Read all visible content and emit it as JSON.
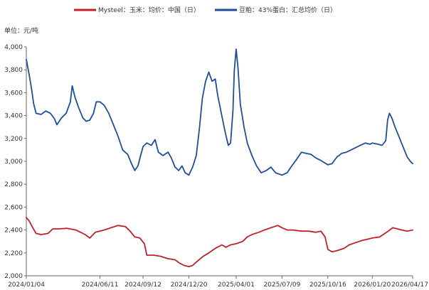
{
  "chart_data": {
    "type": "line",
    "unit_label": "单位：元/吨",
    "ylim": [
      2000,
      4000
    ],
    "y_ticks": [
      "2,000",
      "2,200",
      "2,400",
      "2,600",
      "2,800",
      "3,000",
      "3,200",
      "3,400",
      "3,600",
      "3,800",
      "4,000"
    ],
    "y_tick_values": [
      2000,
      2200,
      2400,
      2600,
      2800,
      3000,
      3200,
      3400,
      3600,
      3800,
      4000
    ],
    "x_ticks": [
      "2024/01/04",
      "2024/06/11",
      "2024/09/12",
      "2024/12/20",
      "2025/04/01",
      "2025/07/09",
      "2025/10/16",
      "2026/01/20",
      "2026/04/17"
    ],
    "x_tick_dates": [
      "2024-01-04",
      "2024-06-11",
      "2024-09-12",
      "2024-12-20",
      "2025-04-01",
      "2025-07-09",
      "2025-10-16",
      "2026-01-20",
      "2026-04-17"
    ],
    "x_range": [
      "2024-01-04",
      "2026-04-17"
    ],
    "grid": false,
    "legend_position": "top",
    "series": [
      {
        "name": "Mysteel：玉米：均价：中国（日）",
        "color": "#c0202a",
        "points": [
          [
            "2024-01-04",
            2510
          ],
          [
            "2024-01-10",
            2480
          ],
          [
            "2024-01-18",
            2420
          ],
          [
            "2024-01-25",
            2370
          ],
          [
            "2024-02-05",
            2360
          ],
          [
            "2024-02-20",
            2370
          ],
          [
            "2024-03-01",
            2410
          ],
          [
            "2024-03-15",
            2410
          ],
          [
            "2024-04-01",
            2415
          ],
          [
            "2024-04-20",
            2400
          ],
          [
            "2024-05-10",
            2360
          ],
          [
            "2024-05-20",
            2330
          ],
          [
            "2024-06-01",
            2380
          ],
          [
            "2024-06-20",
            2400
          ],
          [
            "2024-07-05",
            2420
          ],
          [
            "2024-07-20",
            2440
          ],
          [
            "2024-08-05",
            2430
          ],
          [
            "2024-08-15",
            2390
          ],
          [
            "2024-08-25",
            2340
          ],
          [
            "2024-09-05",
            2330
          ],
          [
            "2024-09-15",
            2280
          ],
          [
            "2024-09-20",
            2180
          ],
          [
            "2024-10-05",
            2180
          ],
          [
            "2024-10-20",
            2170
          ],
          [
            "2024-11-05",
            2150
          ],
          [
            "2024-11-20",
            2140
          ],
          [
            "2024-11-30",
            2110
          ],
          [
            "2024-12-10",
            2090
          ],
          [
            "2024-12-20",
            2080
          ],
          [
            "2024-12-28",
            2090
          ],
          [
            "2025-01-08",
            2130
          ],
          [
            "2025-01-20",
            2170
          ],
          [
            "2025-02-01",
            2200
          ],
          [
            "2025-02-15",
            2240
          ],
          [
            "2025-03-01",
            2270
          ],
          [
            "2025-03-10",
            2250
          ],
          [
            "2025-03-20",
            2270
          ],
          [
            "2025-04-01",
            2280
          ],
          [
            "2025-04-15",
            2300
          ],
          [
            "2025-04-25",
            2340
          ],
          [
            "2025-05-05",
            2360
          ],
          [
            "2025-05-20",
            2380
          ],
          [
            "2025-06-01",
            2400
          ],
          [
            "2025-06-15",
            2420
          ],
          [
            "2025-06-30",
            2440
          ],
          [
            "2025-07-09",
            2420
          ],
          [
            "2025-07-20",
            2400
          ],
          [
            "2025-08-01",
            2400
          ],
          [
            "2025-08-20",
            2390
          ],
          [
            "2025-09-05",
            2390
          ],
          [
            "2025-09-20",
            2380
          ],
          [
            "2025-10-01",
            2390
          ],
          [
            "2025-10-10",
            2340
          ],
          [
            "2025-10-16",
            2230
          ],
          [
            "2025-10-25",
            2210
          ],
          [
            "2025-11-05",
            2220
          ],
          [
            "2025-11-20",
            2240
          ],
          [
            "2025-12-01",
            2270
          ],
          [
            "2025-12-15",
            2290
          ],
          [
            "2025-12-30",
            2310
          ],
          [
            "2026-01-10",
            2320
          ],
          [
            "2026-01-20",
            2330
          ],
          [
            "2026-02-05",
            2340
          ],
          [
            "2026-02-20",
            2380
          ],
          [
            "2026-03-05",
            2420
          ],
          [
            "2026-03-15",
            2410
          ],
          [
            "2026-03-25",
            2400
          ],
          [
            "2026-04-05",
            2390
          ],
          [
            "2026-04-17",
            2400
          ]
        ]
      },
      {
        "name": "豆粕：43%蛋白：汇总均价（日）",
        "color": "#1f4e99",
        "points": [
          [
            "2024-01-04",
            3890
          ],
          [
            "2024-01-10",
            3760
          ],
          [
            "2024-01-15",
            3640
          ],
          [
            "2024-01-20",
            3500
          ],
          [
            "2024-01-25",
            3420
          ],
          [
            "2024-02-05",
            3410
          ],
          [
            "2024-02-15",
            3440
          ],
          [
            "2024-02-25",
            3420
          ],
          [
            "2024-03-05",
            3370
          ],
          [
            "2024-03-10",
            3320
          ],
          [
            "2024-03-20",
            3380
          ],
          [
            "2024-03-30",
            3420
          ],
          [
            "2024-04-08",
            3520
          ],
          [
            "2024-04-12",
            3660
          ],
          [
            "2024-04-18",
            3560
          ],
          [
            "2024-04-25",
            3480
          ],
          [
            "2024-05-05",
            3380
          ],
          [
            "2024-05-12",
            3350
          ],
          [
            "2024-05-20",
            3360
          ],
          [
            "2024-05-28",
            3420
          ],
          [
            "2024-06-03",
            3520
          ],
          [
            "2024-06-11",
            3520
          ],
          [
            "2024-06-20",
            3490
          ],
          [
            "2024-06-30",
            3420
          ],
          [
            "2024-07-10",
            3320
          ],
          [
            "2024-07-20",
            3220
          ],
          [
            "2024-07-30",
            3100
          ],
          [
            "2024-08-10",
            3060
          ],
          [
            "2024-08-18",
            2980
          ],
          [
            "2024-08-25",
            2920
          ],
          [
            "2024-09-01",
            2960
          ],
          [
            "2024-09-06",
            3040
          ],
          [
            "2024-09-12",
            3130
          ],
          [
            "2024-09-20",
            3160
          ],
          [
            "2024-09-30",
            3140
          ],
          [
            "2024-10-08",
            3190
          ],
          [
            "2024-10-15",
            3080
          ],
          [
            "2024-10-25",
            3050
          ],
          [
            "2024-11-05",
            3080
          ],
          [
            "2024-11-12",
            3030
          ],
          [
            "2024-11-20",
            2950
          ],
          [
            "2024-11-28",
            2920
          ],
          [
            "2024-12-05",
            2960
          ],
          [
            "2024-12-12",
            2900
          ],
          [
            "2024-12-20",
            2880
          ],
          [
            "2024-12-28",
            2950
          ],
          [
            "2025-01-05",
            3050
          ],
          [
            "2025-01-12",
            3300
          ],
          [
            "2025-01-18",
            3550
          ],
          [
            "2025-01-25",
            3700
          ],
          [
            "2025-02-01",
            3780
          ],
          [
            "2025-02-08",
            3700
          ],
          [
            "2025-02-15",
            3720
          ],
          [
            "2025-02-20",
            3580
          ],
          [
            "2025-02-28",
            3420
          ],
          [
            "2025-03-08",
            3260
          ],
          [
            "2025-03-15",
            3140
          ],
          [
            "2025-03-20",
            3160
          ],
          [
            "2025-03-25",
            3440
          ],
          [
            "2025-03-28",
            3790
          ],
          [
            "2025-04-01",
            3980
          ],
          [
            "2025-04-05",
            3820
          ],
          [
            "2025-04-10",
            3500
          ],
          [
            "2025-04-18",
            3300
          ],
          [
            "2025-04-25",
            3160
          ],
          [
            "2025-05-05",
            3050
          ],
          [
            "2025-05-15",
            2960
          ],
          [
            "2025-05-25",
            2900
          ],
          [
            "2025-06-05",
            2920
          ],
          [
            "2025-06-15",
            2950
          ],
          [
            "2025-06-25",
            2900
          ],
          [
            "2025-07-09",
            2880
          ],
          [
            "2025-07-20",
            2900
          ],
          [
            "2025-07-30",
            2960
          ],
          [
            "2025-08-10",
            3020
          ],
          [
            "2025-08-20",
            3080
          ],
          [
            "2025-08-30",
            3070
          ],
          [
            "2025-09-10",
            3060
          ],
          [
            "2025-09-20",
            3030
          ],
          [
            "2025-09-30",
            3010
          ],
          [
            "2025-10-08",
            2990
          ],
          [
            "2025-10-16",
            2970
          ],
          [
            "2025-10-25",
            2980
          ],
          [
            "2025-11-05",
            3040
          ],
          [
            "2025-11-15",
            3070
          ],
          [
            "2025-11-25",
            3080
          ],
          [
            "2025-12-05",
            3100
          ],
          [
            "2025-12-15",
            3120
          ],
          [
            "2025-12-25",
            3140
          ],
          [
            "2026-01-05",
            3160
          ],
          [
            "2026-01-15",
            3150
          ],
          [
            "2026-01-20",
            3160
          ],
          [
            "2026-02-01",
            3150
          ],
          [
            "2026-02-10",
            3140
          ],
          [
            "2026-02-18",
            3180
          ],
          [
            "2026-02-22",
            3360
          ],
          [
            "2026-02-26",
            3420
          ],
          [
            "2026-03-03",
            3380
          ],
          [
            "2026-03-10",
            3300
          ],
          [
            "2026-03-20",
            3200
          ],
          [
            "2026-03-28",
            3120
          ],
          [
            "2026-04-05",
            3040
          ],
          [
            "2026-04-12",
            3000
          ],
          [
            "2026-04-17",
            2980
          ]
        ]
      }
    ]
  }
}
